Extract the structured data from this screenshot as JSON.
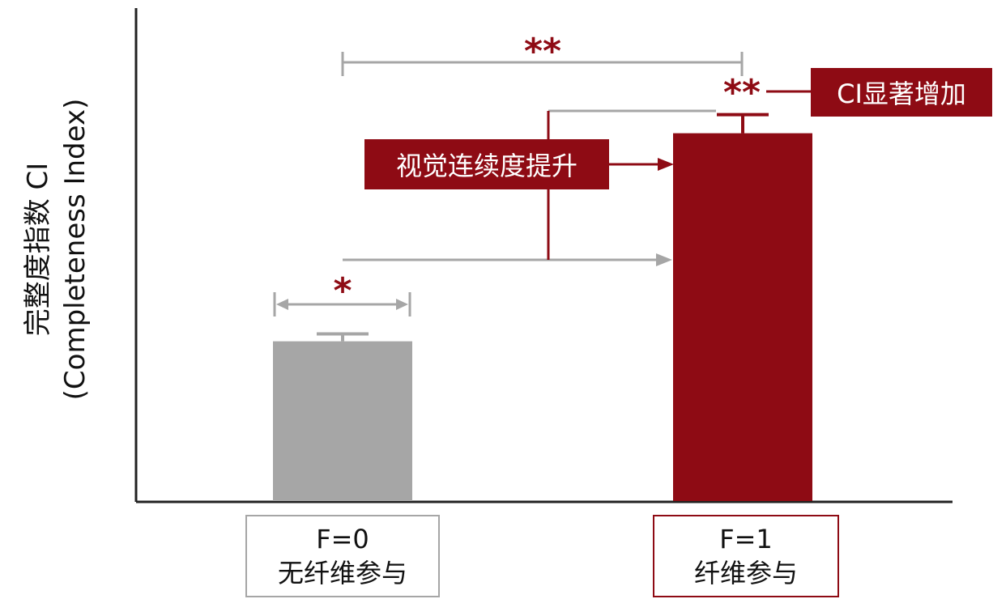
{
  "colors": {
    "gray": "#a6a6a6",
    "red": "#8e0b14",
    "axis": "#222222"
  },
  "chart_data": {
    "type": "bar",
    "ylabel_line1": "完整度指数 CI",
    "ylabel_line2": "(Completeness Index)",
    "ylim": [
      0,
      1
    ],
    "categories": [
      {
        "code": "F=0",
        "desc": "无纤维参与"
      },
      {
        "code": "F=1",
        "desc": "纤维参与"
      }
    ],
    "values": [
      0.43,
      0.99
    ],
    "errors": [
      0.02,
      0.05
    ],
    "annotations": {
      "within_f0": "*",
      "between_groups": "**",
      "above_f1": "**",
      "callout_ci": "CI显著增加",
      "callout_continuity": "视觉连续度提升"
    }
  }
}
